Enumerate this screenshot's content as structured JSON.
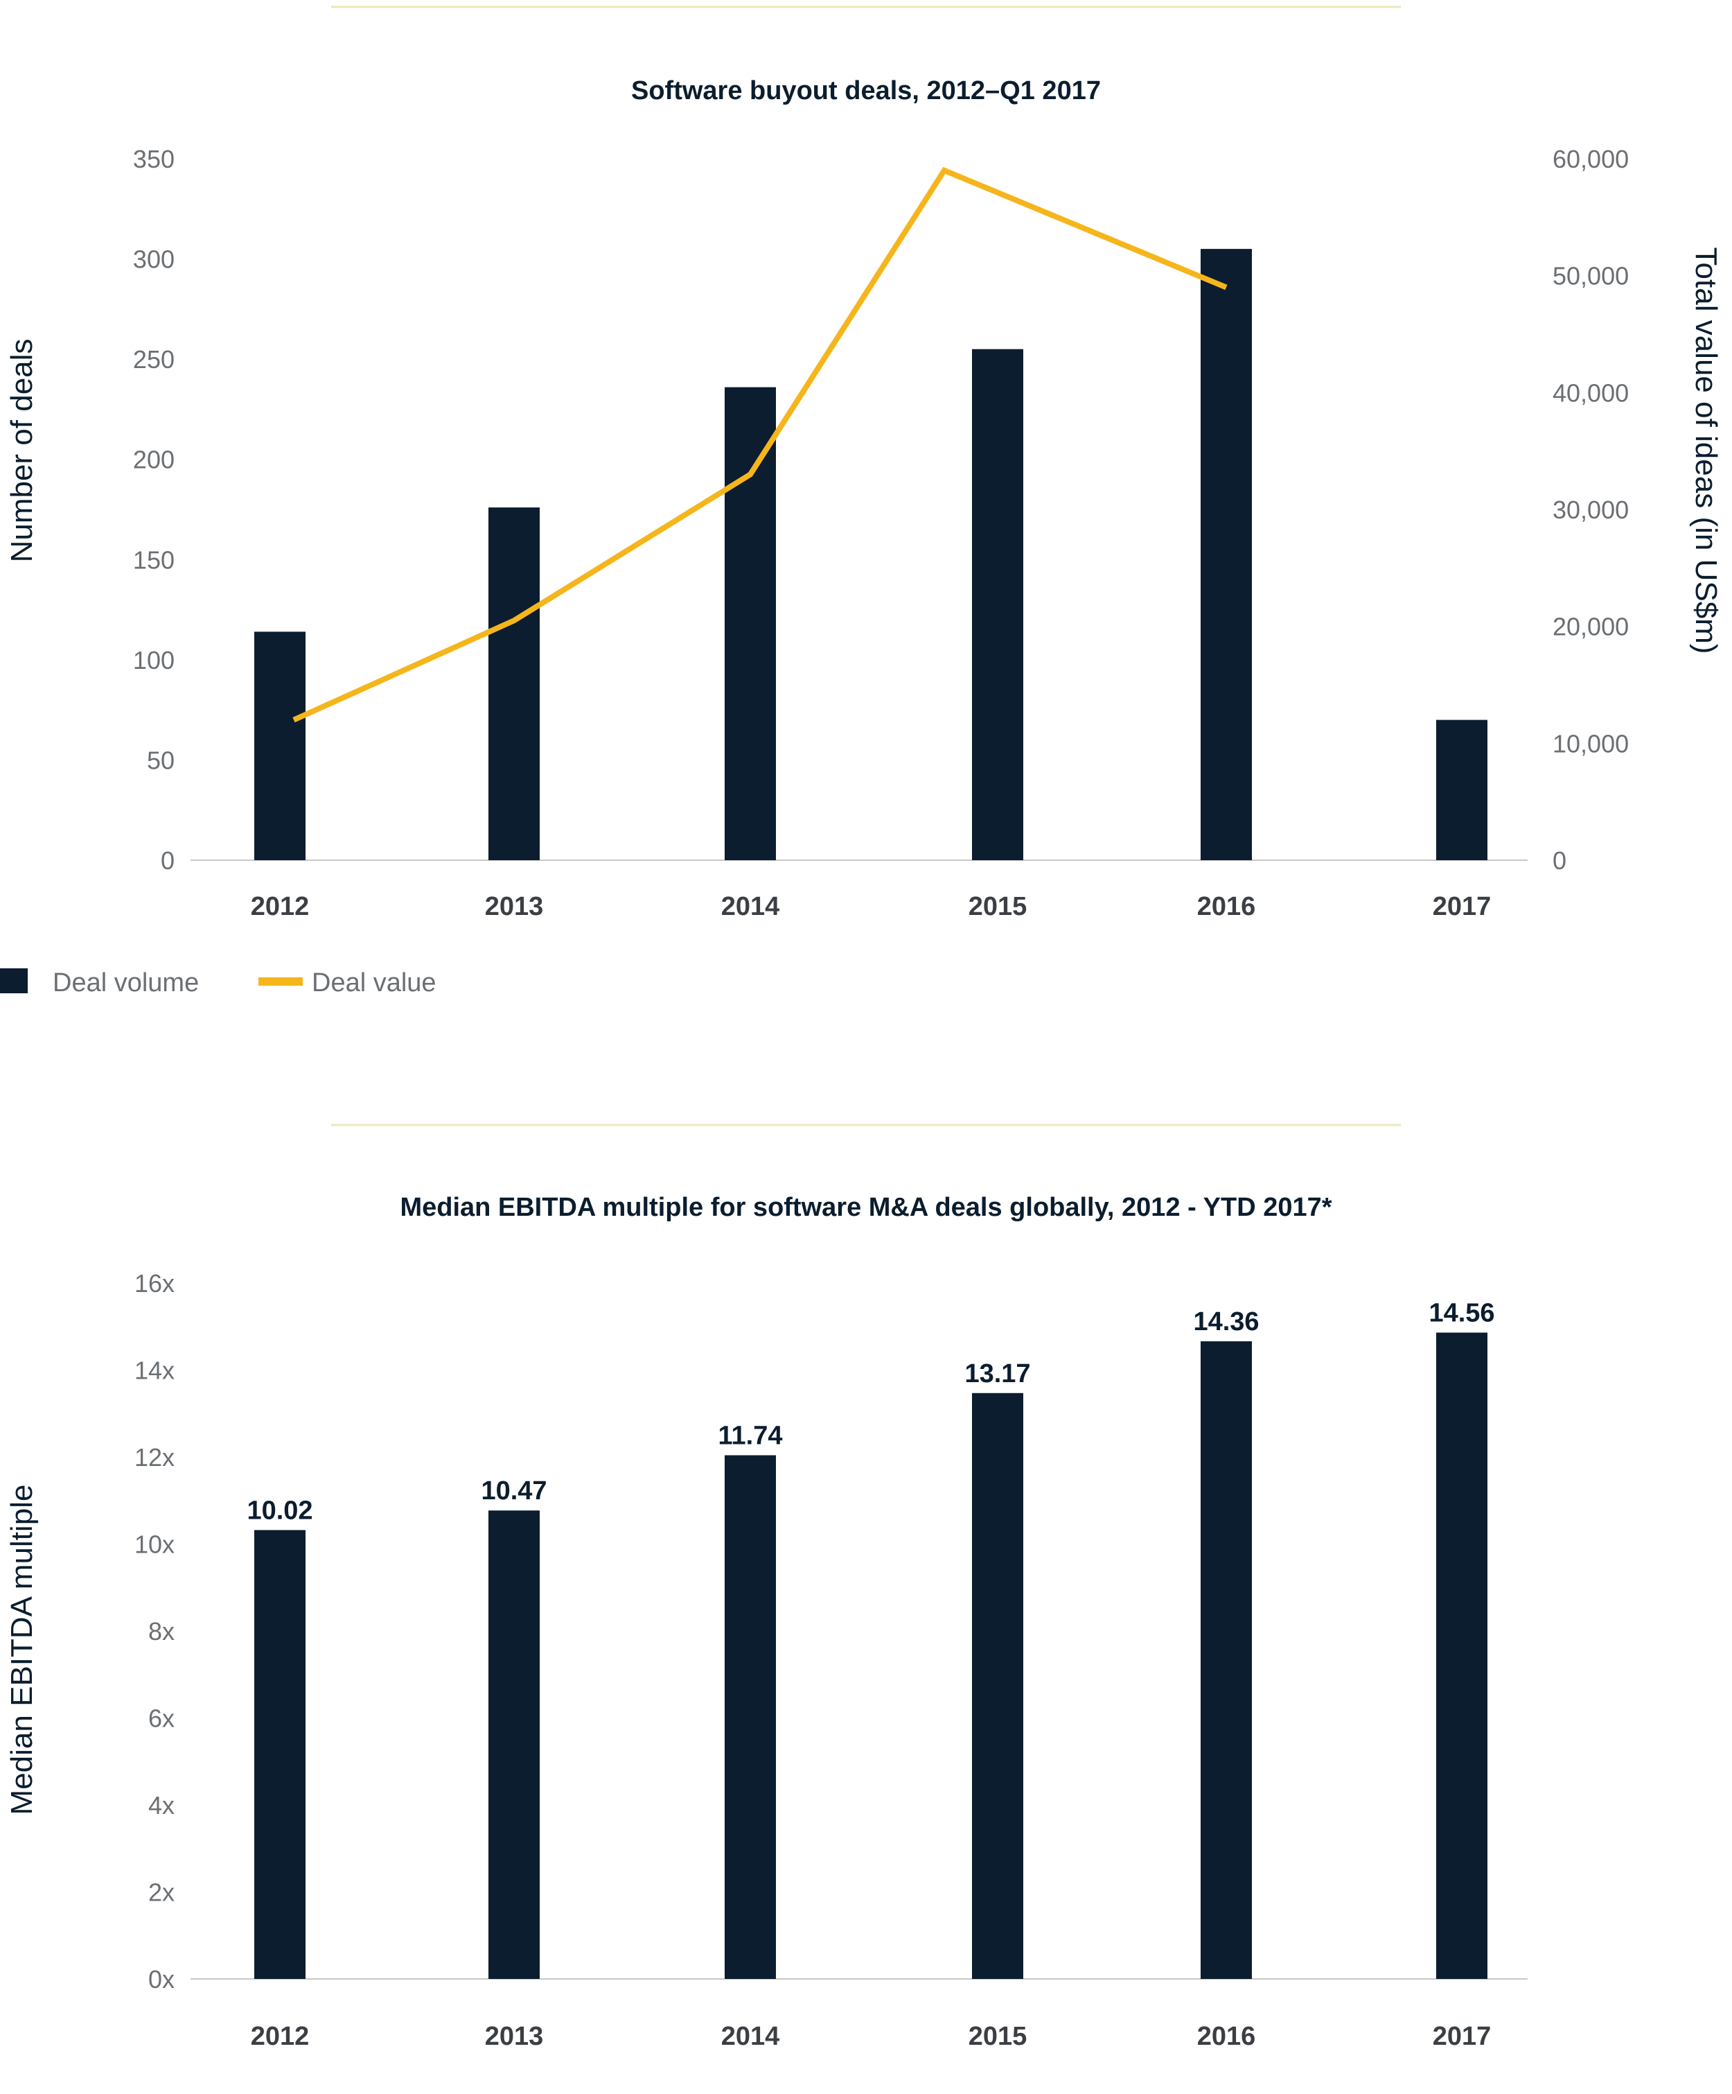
{
  "chart_data": [
    {
      "type": "bar",
      "title": "Software buyout deals, 2012–Q1 2017",
      "categories": [
        "2012",
        "2013",
        "2014",
        "2015",
        "2016",
        "2017"
      ],
      "ylabel": "Number of deals",
      "y2label": "Total value of ideas (in US$m)",
      "ylim": [
        0,
        350
      ],
      "y2lim": [
        0,
        60000
      ],
      "yticks": [
        "0",
        "50",
        "100",
        "150",
        "200",
        "250",
        "300",
        "350"
      ],
      "y2ticks": [
        "0",
        "10,000",
        "20,000",
        "30,000",
        "40,000",
        "50,000",
        "60,000"
      ],
      "series": [
        {
          "name": "Deal volume",
          "type": "bar",
          "axis": "left",
          "color": "#0b1d2e",
          "values": [
            114,
            176,
            236,
            255,
            305,
            70
          ]
        },
        {
          "name": "Deal value",
          "type": "line",
          "axis": "right",
          "color": "#f5b51b",
          "values": [
            12000,
            20500,
            33000,
            59000,
            49000,
            null
          ]
        }
      ],
      "legend": {
        "position": "bottom-left",
        "items": [
          "Deal volume",
          "Deal value"
        ]
      }
    },
    {
      "type": "bar",
      "title": "Median EBITDA multiple for software M&A deals globally, 2012 - YTD 2017*",
      "categories": [
        "2012",
        "2013",
        "2014",
        "2015",
        "2016",
        "2017"
      ],
      "ylabel": "Median EBITDA multiple",
      "ylim": [
        0,
        16
      ],
      "yticks": [
        "0x",
        "2x",
        "4x",
        "6x",
        "8x",
        "10x",
        "12x",
        "14x",
        "16x"
      ],
      "series": [
        {
          "name": "Median EBITDA multiple",
          "color": "#0b1d2e",
          "values": [
            10.02,
            10.47,
            11.74,
            13.17,
            14.36,
            14.56
          ],
          "labels": [
            "10.02",
            "10.47",
            "11.74",
            "13.17",
            "14.36",
            "14.56"
          ]
        }
      ]
    }
  ]
}
